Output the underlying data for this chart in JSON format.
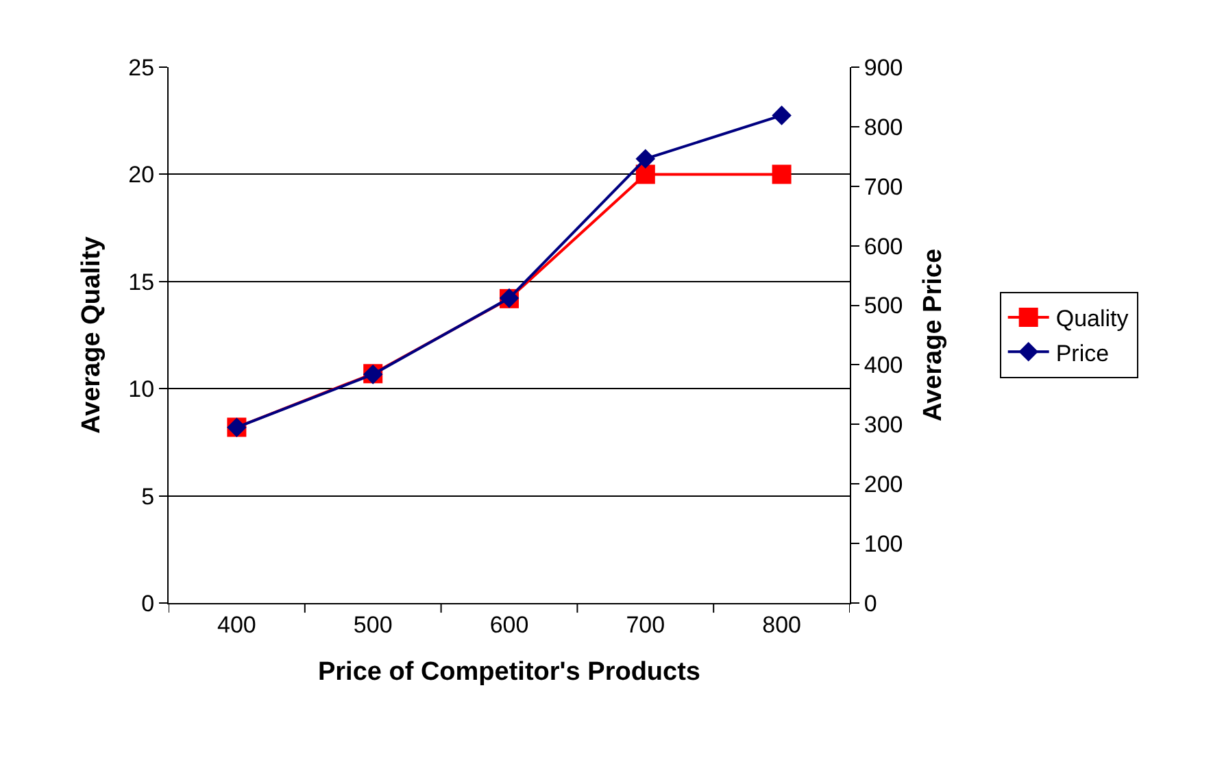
{
  "chart_data": {
    "type": "line",
    "xlabel": "Price of Competitor's Products",
    "ylabel": "Average Quality",
    "y2label": "Average Price",
    "categories": [
      "400",
      "500",
      "600",
      "700",
      "800"
    ],
    "series": [
      {
        "name": "Quality",
        "color": "#ff0000",
        "marker": "square",
        "values": [
          8.2,
          10.7,
          14.2,
          20,
          20
        ]
      },
      {
        "name": "Price",
        "color": "#000080",
        "marker": "diamond",
        "axis": "y2",
        "values": [
          295,
          384,
          512,
          746,
          819
        ]
      }
    ],
    "ylim": [
      0,
      25
    ],
    "yticks": [
      0,
      5,
      10,
      15,
      20,
      25
    ],
    "y2lim": [
      0,
      900
    ],
    "y2ticks": [
      0,
      100,
      200,
      300,
      400,
      500,
      600,
      700,
      800,
      900
    ],
    "grid": "y",
    "legend": "right",
    "line_style": "solid"
  }
}
